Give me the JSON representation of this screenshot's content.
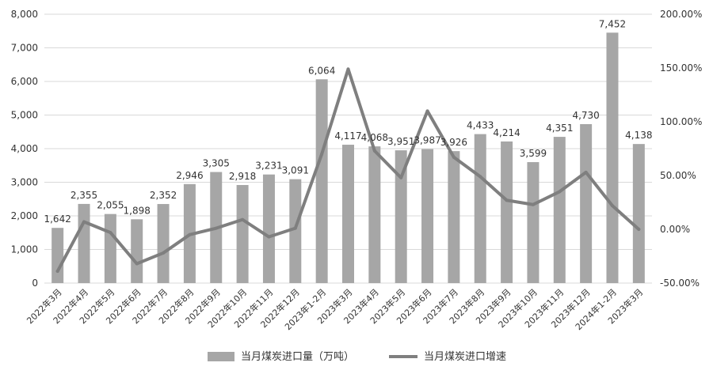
{
  "chart_data": {
    "type": "bar-line",
    "title": "",
    "categories": [
      "2022年3月",
      "2022年4月",
      "2022年5月",
      "2022年6月",
      "2022年7月",
      "2022年8月",
      "2022年9月",
      "2022年10月",
      "2022年11月",
      "2022年12月",
      "2023年1-2月",
      "2023年3月",
      "2023年4月",
      "2023年5月",
      "2023年6月",
      "2023年7月",
      "2023年8月",
      "2023年9月",
      "2023年10月",
      "2023年11月",
      "2023年12月",
      "2024年1-2月",
      "2023年3月"
    ],
    "series": [
      {
        "name": "当月煤炭进口量（万吨）",
        "type": "bar",
        "axis": "left",
        "values": [
          1642,
          2355,
          2055,
          1898,
          2352,
          2946,
          3305,
          2918,
          3231,
          3091,
          6064,
          4117,
          4068,
          3951,
          3987,
          3926,
          4433,
          4214,
          3599,
          4351,
          4730,
          7452,
          4138
        ],
        "labels": [
          "1,642",
          "2,355",
          "2,055",
          "1,898",
          "2,352",
          "2,946",
          "3,305",
          "2,918",
          "3,231",
          "3,091",
          "6,064",
          "4,117",
          "4,068",
          "3,951",
          "3,987",
          "3,926",
          "4,433",
          "4,214",
          "3,599",
          "4,351",
          "4,730",
          "7,452",
          "4,138"
        ],
        "color": "#a6a6a6"
      },
      {
        "name": "当月煤炭进口增速",
        "type": "line",
        "axis": "right",
        "values": [
          -39,
          7,
          -3,
          -32,
          -22,
          -5,
          1,
          9,
          -7,
          1,
          70,
          149,
          73,
          48,
          110,
          67,
          49,
          27,
          23,
          35,
          53,
          22,
          0
        ],
        "color": "#7f7f7f"
      }
    ],
    "y_left": {
      "min": 0,
      "max": 8000,
      "ticks": [
        "0",
        "1,000",
        "2,000",
        "3,000",
        "4,000",
        "5,000",
        "6,000",
        "7,000",
        "8,000"
      ]
    },
    "y_right": {
      "min": -50,
      "max": 200,
      "ticks": [
        "-50.00%",
        "0.00%",
        "50.00%",
        "100.00%",
        "150.00%",
        "200.00%"
      ]
    },
    "grid": true,
    "legend_position": "bottom"
  }
}
